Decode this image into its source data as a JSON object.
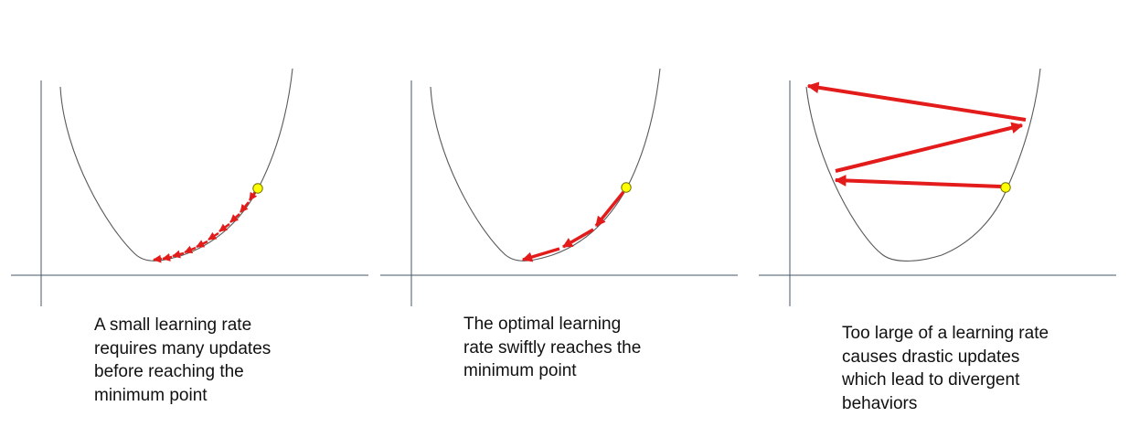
{
  "panels": [
    {
      "id": "small-learning-rate",
      "caption_lines": [
        "A small learning rate",
        "requires many updates",
        "before reaching the",
        "minimum point"
      ]
    },
    {
      "id": "optimal-learning-rate",
      "caption_lines": [
        "The optimal learning",
        "rate swiftly reaches the",
        "minimum point"
      ]
    },
    {
      "id": "large-learning-rate",
      "caption_lines": [
        "Too large of a learning rate",
        "causes drastic updates",
        "which lead to divergent",
        "behaviors"
      ]
    }
  ],
  "colors": {
    "axis": "#44546a",
    "curve": "#595959",
    "arrow": "#e31b1b",
    "start_point_fill": "#ffff00",
    "start_point_stroke": "#6f6f00",
    "text": "#111111"
  },
  "icons": {
    "start_point": "yellow-circle",
    "update_step": "red-arrow"
  }
}
